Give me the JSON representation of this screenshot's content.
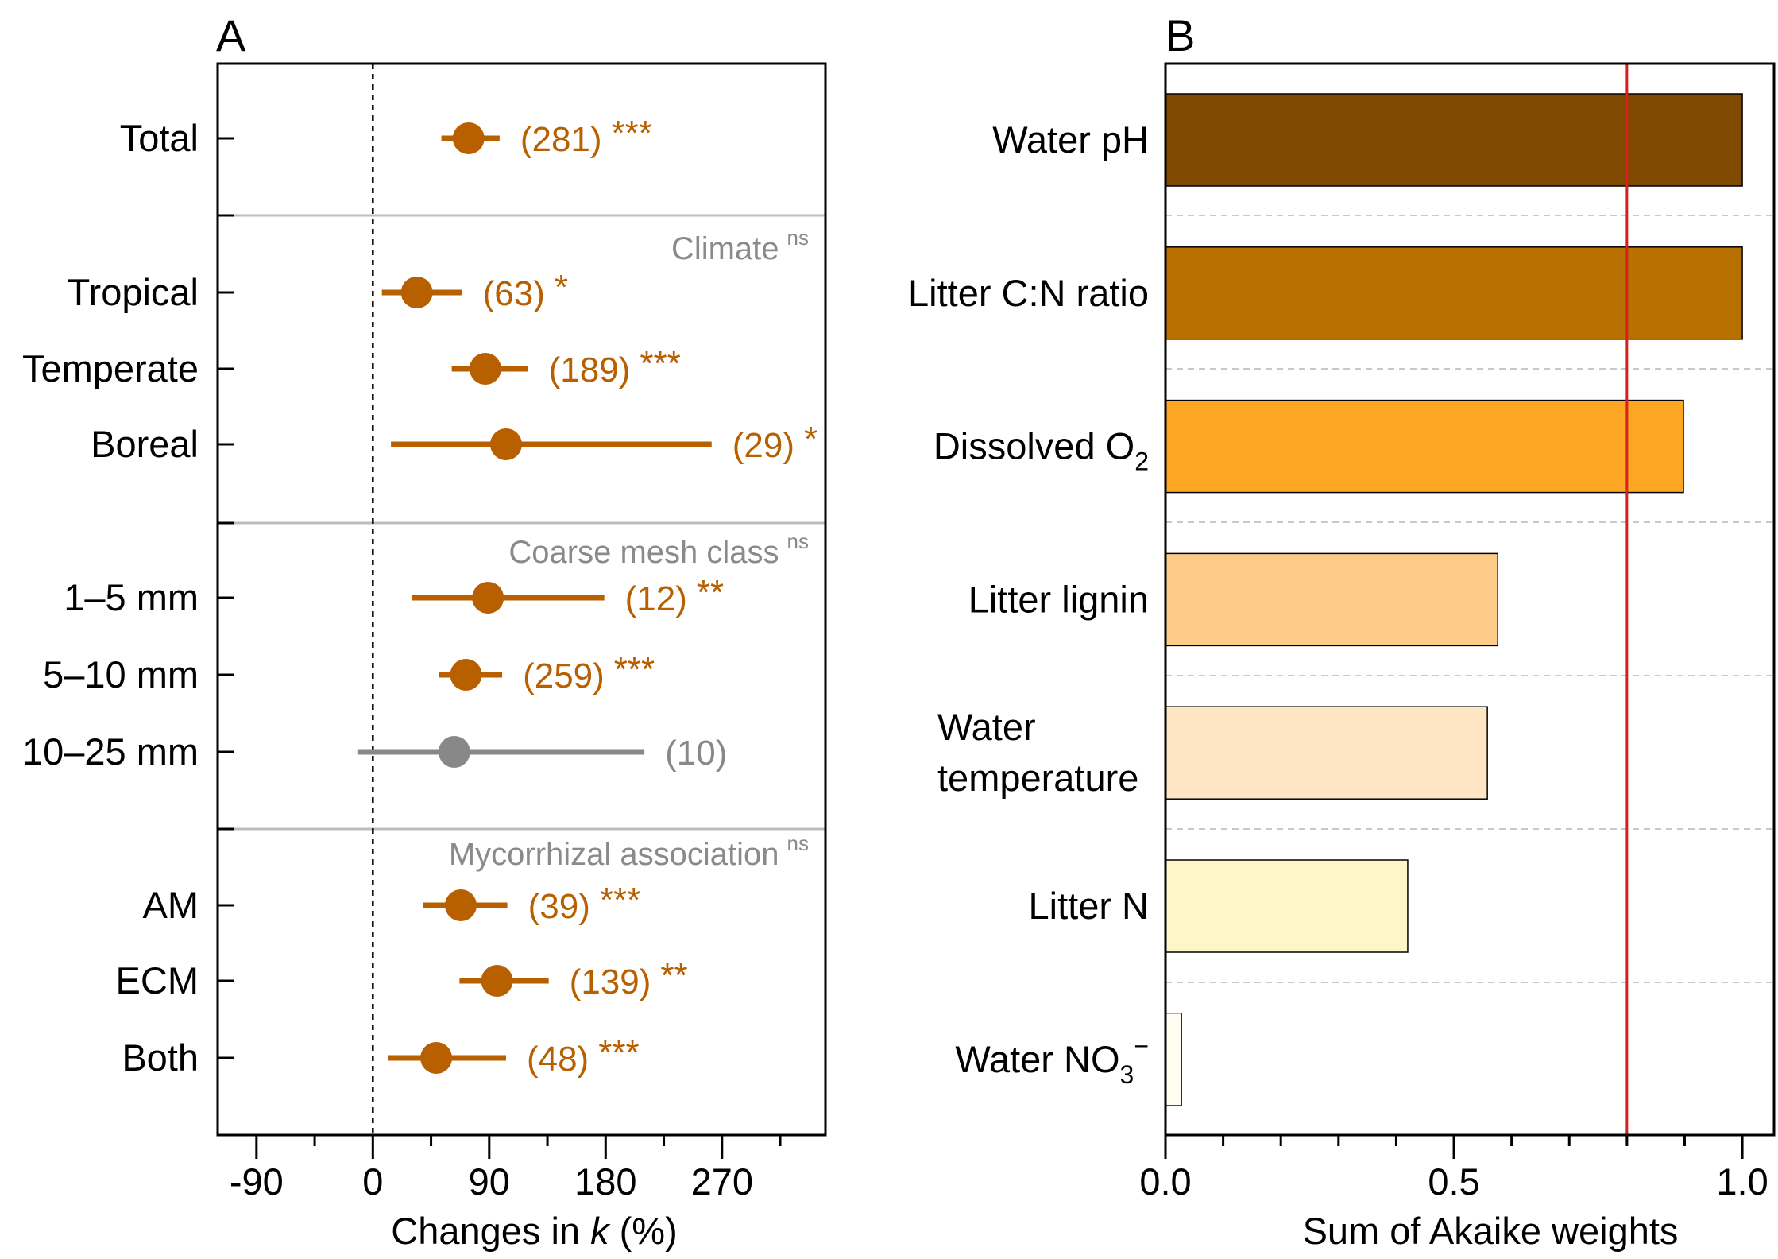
{
  "chart_data": [
    {
      "panel_label": "A",
      "type": "forest",
      "xlabel": "Changes in k (%)",
      "xlabel_parts": {
        "pre": "Changes in ",
        "italic": "k",
        "post": " (%)"
      },
      "xlim": [
        -120,
        350
      ],
      "xticks": [
        -90,
        0,
        90,
        180,
        270
      ],
      "xtick_labels": [
        "-90",
        "0",
        "90",
        "180",
        "270"
      ],
      "reference_line": 0,
      "colors": {
        "significant": "#B85F00",
        "nonsignificant": "#888888",
        "group_label": "#8A8A8A"
      },
      "groups": [
        {
          "title": "",
          "ns": "",
          "rows": [
            {
              "label": "Total",
              "mean": 74,
              "ci": [
                53,
                98
              ],
              "n": "(281)",
              "sig": "***",
              "color": "#B85F00"
            }
          ]
        },
        {
          "title": "Climate",
          "ns": "ns",
          "rows": [
            {
              "label": "Tropical",
              "mean": 34,
              "ci": [
                7,
                69
              ],
              "n": "(63)",
              "sig": "*",
              "color": "#B85F00"
            },
            {
              "label": "Temperate",
              "mean": 87,
              "ci": [
                61,
                120
              ],
              "n": "(189)",
              "sig": "***",
              "color": "#B85F00"
            },
            {
              "label": "Boreal",
              "mean": 103,
              "ci": [
                14,
                262
              ],
              "n": "(29)",
              "sig": "*",
              "color": "#B85F00"
            }
          ]
        },
        {
          "title": "Coarse mesh class",
          "ns": "ns",
          "rows": [
            {
              "label": "1–5 mm",
              "mean": 89,
              "ci": [
                30,
                179
              ],
              "n": "(12)",
              "sig": "**",
              "color": "#B85F00"
            },
            {
              "label": "5–10 mm",
              "mean": 72,
              "ci": [
                51,
                100
              ],
              "n": "(259)",
              "sig": "***",
              "color": "#B85F00"
            },
            {
              "label": "10–25 mm",
              "mean": 63,
              "ci": [
                -12,
                210
              ],
              "n": "(10)",
              "sig": "",
              "color": "#888888"
            }
          ]
        },
        {
          "title": "Mycorrhizal association",
          "ns": "ns",
          "rows": [
            {
              "label": "AM",
              "mean": 68,
              "ci": [
                39,
                104
              ],
              "n": "(39)",
              "sig": "***",
              "color": "#B85F00"
            },
            {
              "label": "ECM",
              "mean": 96,
              "ci": [
                67,
                136
              ],
              "n": "(139)",
              "sig": "**",
              "color": "#B85F00"
            },
            {
              "label": "Both",
              "mean": 49,
              "ci": [
                12,
                103
              ],
              "n": "(48)",
              "sig": "***",
              "color": "#B85F00"
            }
          ]
        }
      ]
    },
    {
      "panel_label": "B",
      "type": "bar",
      "orientation": "horizontal",
      "xlabel": "Sum of Akaike weights",
      "xlim": [
        0,
        1.055
      ],
      "xticks": [
        0,
        0.5,
        1.0
      ],
      "xtick_labels": [
        "0.0",
        "0.5",
        "1.0"
      ],
      "threshold_line": {
        "value": 0.8,
        "color": "#D62020"
      },
      "bars": [
        {
          "label": "Water pH",
          "sub": "",
          "sup": "",
          "value": 1.0,
          "color": "#7F4A00"
        },
        {
          "label": "Litter C:N ratio",
          "sub": "",
          "sup": "",
          "value": 1.0,
          "color": "#B87000"
        },
        {
          "label": "Dissolved O",
          "sub": "2",
          "sup": "",
          "value": 0.898,
          "color": "#FDA624"
        },
        {
          "label": "Litter lignin",
          "sub": "",
          "sup": "",
          "value": 0.576,
          "color": "#FECC88"
        },
        {
          "label": "Water temperature",
          "lines": [
            "Water",
            "temperature"
          ],
          "sub": "",
          "sup": "",
          "value": 0.558,
          "color": "#FEE6C5"
        },
        {
          "label": "Litter N",
          "sub": "",
          "sup": "",
          "value": 0.42,
          "color": "#FFF6C8"
        },
        {
          "label": "Water NO",
          "sub": "3",
          "sup": "−",
          "value": 0.028,
          "color": "#FFFDF0"
        }
      ]
    }
  ]
}
